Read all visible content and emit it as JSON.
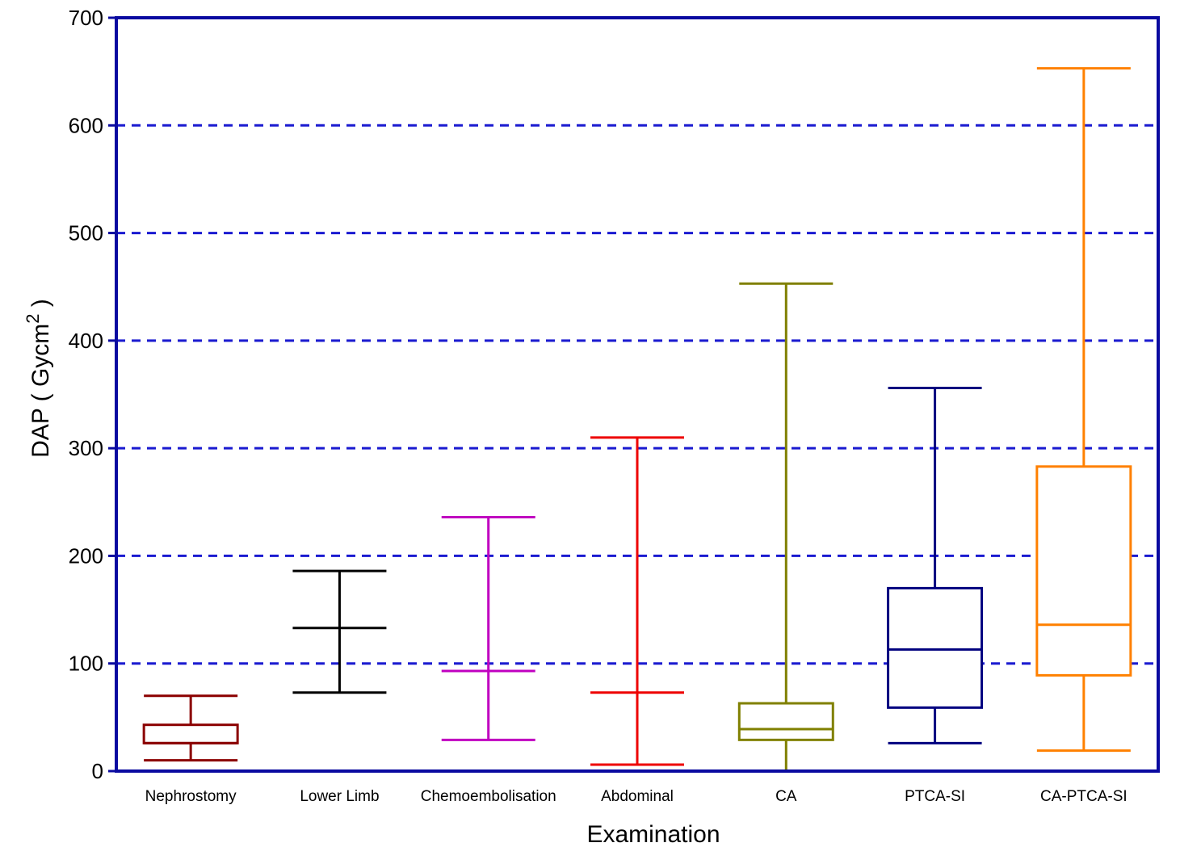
{
  "chart_data": {
    "type": "boxplot",
    "title": "",
    "xlabel": "Examination",
    "ylabel": "DAP ( Gy·cm² )",
    "ylabel_parts": {
      "main": "DAP ( Gycm",
      "sup": "2",
      "close": " )"
    },
    "ylim": [
      0,
      700
    ],
    "yticks": [
      0,
      100,
      200,
      300,
      400,
      500,
      600,
      700
    ],
    "grid": "horizontal dashed",
    "axis_color": "#0a0aa0",
    "grid_color": "#1a1ad0",
    "categories": [
      "Nephrostomy",
      "Lower Limb",
      "Chemoembolisation",
      "Abdominal",
      "CA",
      "PTCA-SI",
      "CA-PTCA-SI"
    ],
    "series": [
      {
        "category": "Nephrostomy",
        "min": 10,
        "q1": 26,
        "median": 26,
        "q3": 43,
        "max": 70,
        "color": "#8b0000"
      },
      {
        "category": "Lower Limb",
        "min": 73,
        "q1": 133,
        "median": 133,
        "q3": 133,
        "max": 186,
        "color": "#000000"
      },
      {
        "category": "Chemoembolisation",
        "min": 29,
        "q1": 93,
        "median": 93,
        "q3": 93,
        "max": 236,
        "color": "#c000c0"
      },
      {
        "category": "Abdominal",
        "min": 6,
        "q1": 73,
        "median": 73,
        "q3": 73,
        "max": 310,
        "color": "#ee0000"
      },
      {
        "category": "CA",
        "min": 0,
        "q1": 29,
        "median": 39,
        "q3": 63,
        "max": 453,
        "color": "#808000"
      },
      {
        "category": "PTCA-SI",
        "min": 26,
        "q1": 59,
        "median": 113,
        "q3": 170,
        "max": 356,
        "color": "#00007f"
      },
      {
        "category": "CA-PTCA-SI",
        "min": 19,
        "q1": 89,
        "median": 136,
        "q3": 283,
        "max": 653,
        "color": "#ff8000"
      }
    ]
  }
}
